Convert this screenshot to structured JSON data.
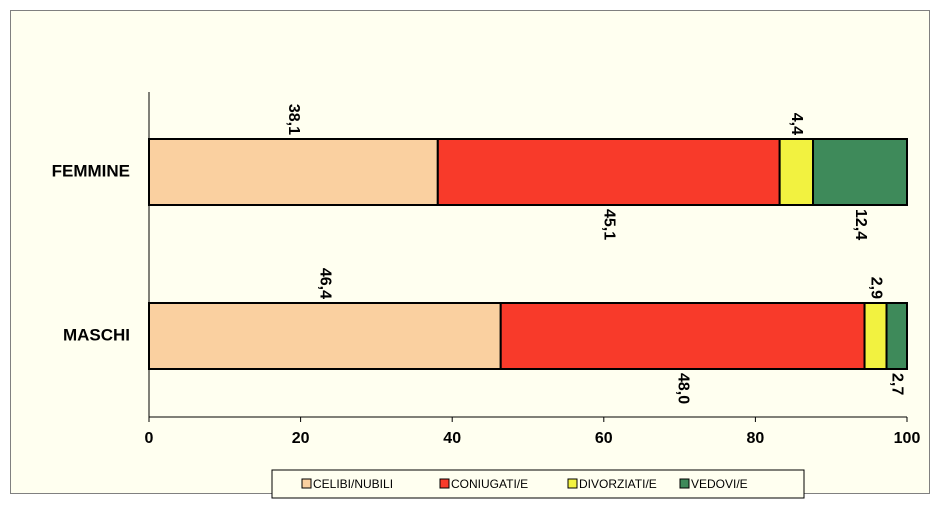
{
  "chart_data": {
    "type": "bar",
    "orientation": "horizontal",
    "stacked": true,
    "categories": [
      "FEMMINE",
      "MASCHI"
    ],
    "series": [
      {
        "name": "CELIBI/NUBILI",
        "color": "#fad0a0",
        "values": [
          38.1,
          46.4
        ],
        "labels": [
          "38,1",
          "46,4"
        ]
      },
      {
        "name": "CONIUGATI/E",
        "color": "#f83a2a",
        "values": [
          45.1,
          48.0
        ],
        "labels": [
          "45,1",
          "48,0"
        ]
      },
      {
        "name": "DIVORZIATI/E",
        "color": "#f2f240",
        "values": [
          4.4,
          2.9
        ],
        "labels": [
          "4,4",
          "2,9"
        ]
      },
      {
        "name": "VEDOVI/E",
        "color": "#3e8a5a",
        "values": [
          12.4,
          2.7
        ],
        "labels": [
          "12,4",
          "2,7"
        ]
      }
    ],
    "xlim": [
      0,
      100
    ],
    "xticks": [
      0,
      20,
      40,
      60,
      80,
      100
    ],
    "legend_position": "bottom",
    "grid": false
  }
}
